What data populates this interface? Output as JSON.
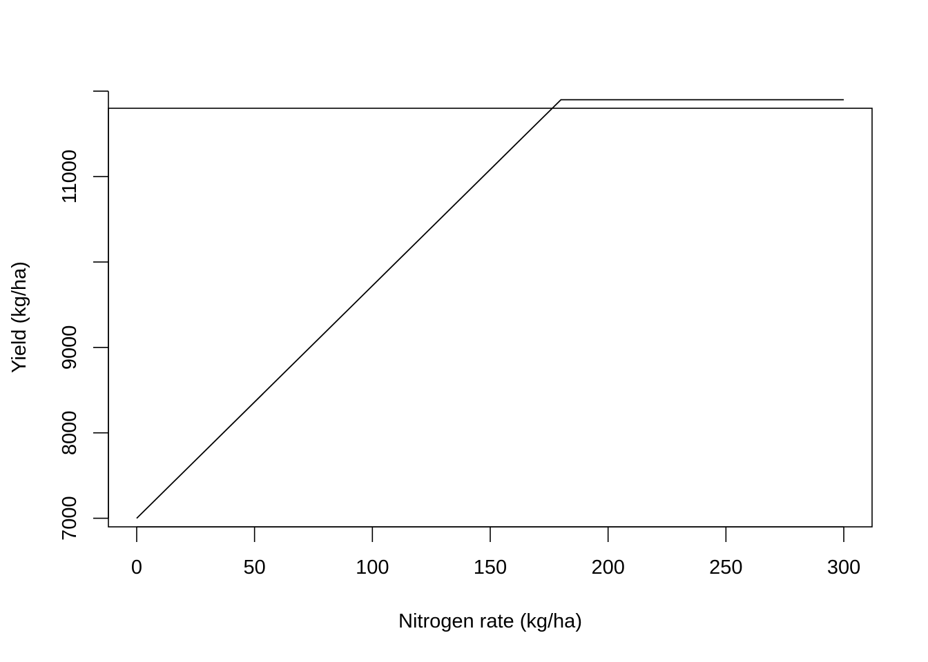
{
  "chart_data": {
    "type": "line",
    "title": "",
    "xlabel": "Nitrogen rate (kg/ha)",
    "ylabel": "Yield (kg/ha)",
    "xlim": [
      -12,
      312
    ],
    "ylim": [
      6900,
      11800
    ],
    "grid": false,
    "legend": "none",
    "x_ticks": [
      0,
      50,
      100,
      150,
      200,
      250,
      300
    ],
    "x_tick_labels": [
      "0",
      "50",
      "100",
      "150",
      "200",
      "250",
      "300"
    ],
    "y_ticks": [
      7000,
      8000,
      9000,
      10000,
      11000,
      12000
    ],
    "y_tick_labels": [
      "7000",
      "8000",
      "9000",
      "",
      "11000",
      ""
    ],
    "series": [
      {
        "x": [
          0,
          180,
          300
        ],
        "y": [
          7000,
          11900,
          11900
        ],
        "color": "#000000"
      }
    ]
  }
}
